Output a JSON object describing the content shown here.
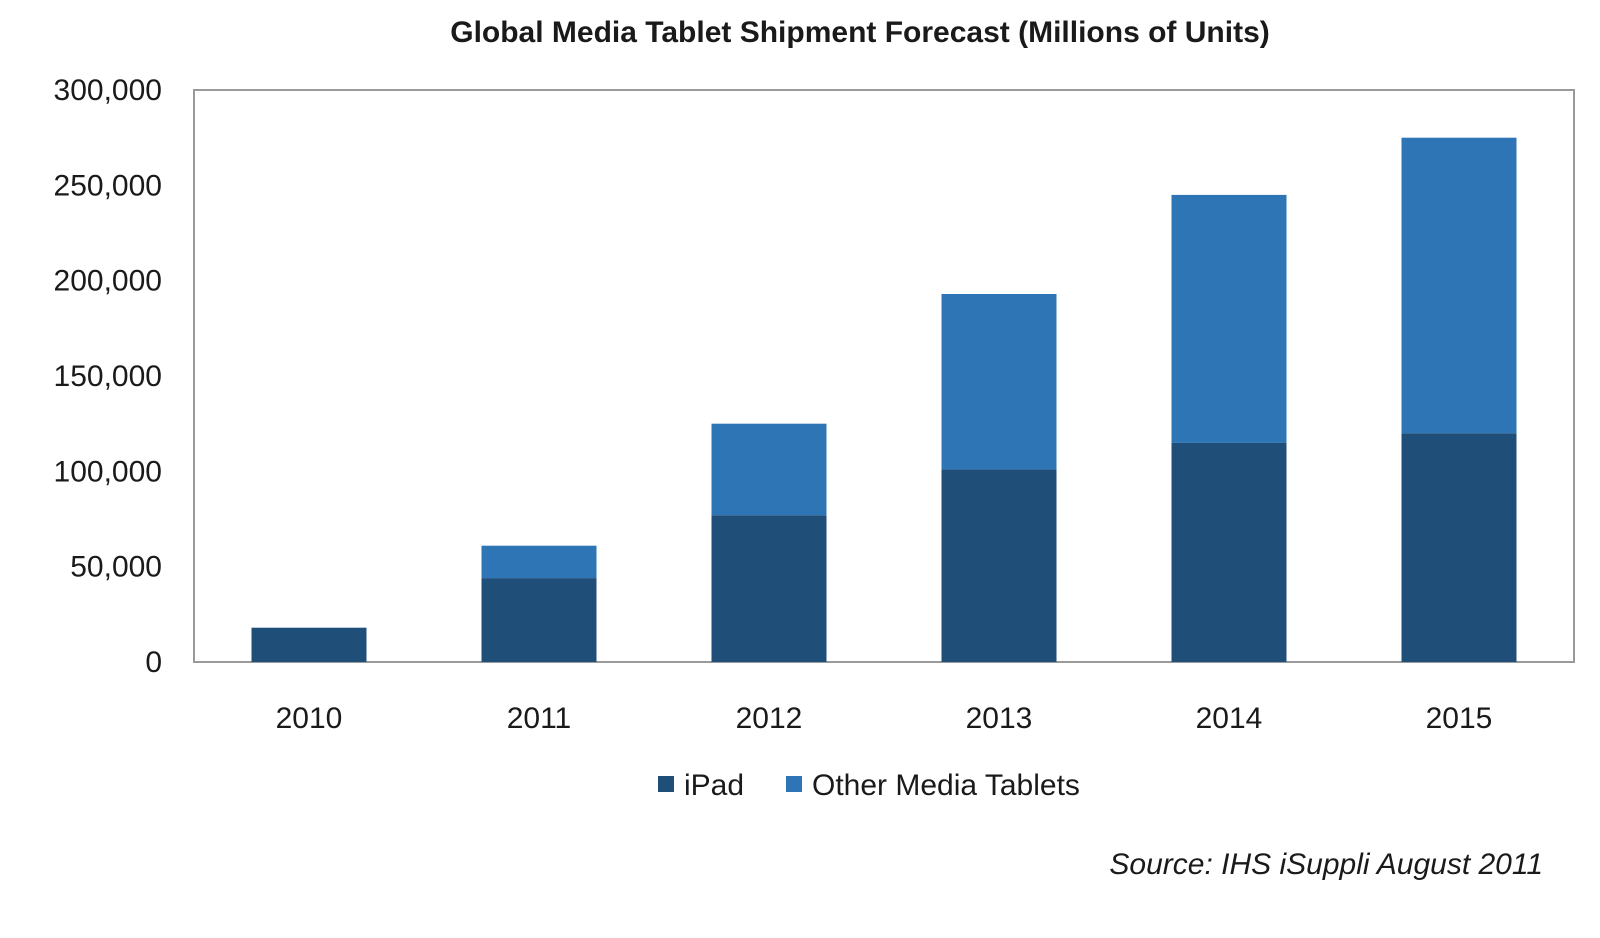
{
  "chart_data": {
    "type": "bar",
    "stacked": true,
    "title": "Global Media Tablet Shipment Forecast (Millions of Units)",
    "categories": [
      "2010",
      "2011",
      "2012",
      "2013",
      "2014",
      "2015"
    ],
    "series": [
      {
        "name": "iPad",
        "color": "#1f4e79",
        "values": [
          18000,
          44000,
          77000,
          101000,
          115000,
          120000
        ]
      },
      {
        "name": "Other Media Tablets",
        "color": "#2e75b6",
        "values": [
          0,
          17000,
          48000,
          92000,
          130000,
          155000
        ]
      }
    ],
    "ylim": [
      0,
      300000
    ],
    "yticks": [
      0,
      50000,
      100000,
      150000,
      200000,
      250000,
      300000
    ],
    "ytick_labels": [
      "0",
      "50,000",
      "100,000",
      "150,000",
      "200,000",
      "250,000",
      "300,000"
    ],
    "xlabel": "",
    "ylabel": "",
    "grid": false,
    "legend_position": "bottom",
    "source": "Source: IHS iSuppli August 2011"
  },
  "colors": {
    "frame": "#9a9a9a",
    "text": "#1a1a1a"
  }
}
